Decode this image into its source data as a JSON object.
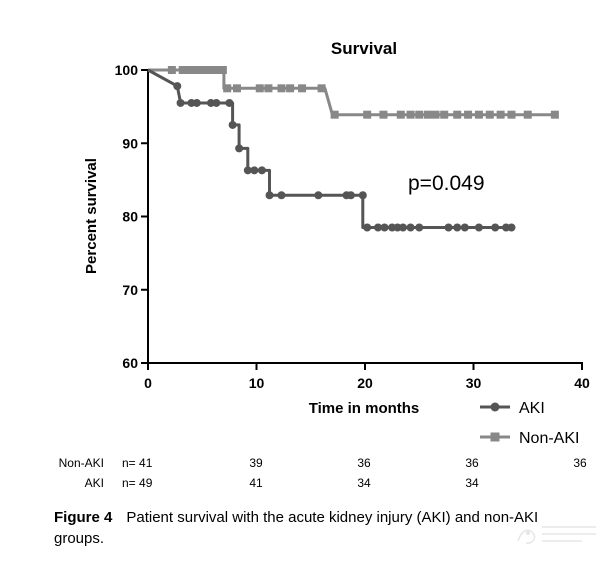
{
  "chart_data": {
    "type": "line",
    "title": "Survival",
    "xlabel": "Time in months",
    "ylabel": "Percent survival",
    "xlim": [
      0,
      40
    ],
    "ylim": [
      60,
      100
    ],
    "x_ticks": [
      0,
      10,
      20,
      30,
      40
    ],
    "y_ticks": [
      60,
      70,
      80,
      90,
      100
    ],
    "grid": false,
    "legend_position": "bottom-right",
    "annotation": "p=0.049",
    "series": [
      {
        "name": "AKI",
        "color": "#555555",
        "marker": "circle",
        "step": [
          [
            0,
            100
          ],
          [
            2.7,
            97.8
          ],
          [
            3,
            95.5
          ],
          [
            7.8,
            95.5
          ],
          [
            7.8,
            92.5
          ],
          [
            8.4,
            92.5
          ],
          [
            8.4,
            89.3
          ],
          [
            9.2,
            89.3
          ],
          [
            9.2,
            86.3
          ],
          [
            11.2,
            86.3
          ],
          [
            11.2,
            82.9
          ],
          [
            19.8,
            82.9
          ],
          [
            19.8,
            78.5
          ],
          [
            33.5,
            78.5
          ]
        ],
        "markers": [
          [
            2.7,
            97.8
          ],
          [
            3,
            95.5
          ],
          [
            4,
            95.5
          ],
          [
            4.5,
            95.5
          ],
          [
            5.8,
            95.5
          ],
          [
            6.3,
            95.5
          ],
          [
            7.5,
            95.5
          ],
          [
            7.8,
            92.5
          ],
          [
            8.4,
            89.3
          ],
          [
            9.2,
            86.3
          ],
          [
            9.8,
            86.3
          ],
          [
            10.5,
            86.3
          ],
          [
            11.2,
            82.9
          ],
          [
            12.3,
            82.9
          ],
          [
            15.7,
            82.9
          ],
          [
            18.3,
            82.9
          ],
          [
            18.7,
            82.9
          ],
          [
            19.8,
            82.9
          ],
          [
            20.2,
            78.5
          ],
          [
            21.2,
            78.5
          ],
          [
            21.8,
            78.5
          ],
          [
            22.5,
            78.5
          ],
          [
            23,
            78.5
          ],
          [
            23.5,
            78.5
          ],
          [
            24.2,
            78.5
          ],
          [
            25,
            78.5
          ],
          [
            27.7,
            78.5
          ],
          [
            28.5,
            78.5
          ],
          [
            29.2,
            78.5
          ],
          [
            30.5,
            78.5
          ],
          [
            32,
            78.5
          ],
          [
            33,
            78.5
          ],
          [
            33.5,
            78.5
          ]
        ]
      },
      {
        "name": "Non-AKI",
        "color": "#888888",
        "marker": "square",
        "step": [
          [
            0,
            100
          ],
          [
            7,
            100
          ],
          [
            7,
            97.5
          ],
          [
            16.3,
            97.5
          ],
          [
            17,
            93.9
          ],
          [
            37.5,
            93.9
          ]
        ],
        "markers": [
          [
            2.2,
            100
          ],
          [
            3.2,
            100
          ],
          [
            3.8,
            100
          ],
          [
            4.4,
            100
          ],
          [
            4.9,
            100
          ],
          [
            5.4,
            100
          ],
          [
            5.9,
            100
          ],
          [
            6.4,
            100
          ],
          [
            6.9,
            100
          ],
          [
            7.3,
            97.5
          ],
          [
            8.2,
            97.5
          ],
          [
            10.3,
            97.5
          ],
          [
            11.1,
            97.5
          ],
          [
            12.3,
            97.5
          ],
          [
            13.1,
            97.5
          ],
          [
            14.2,
            97.5
          ],
          [
            16,
            97.5
          ],
          [
            17.2,
            93.9
          ],
          [
            20.2,
            93.9
          ],
          [
            21.7,
            93.9
          ],
          [
            23.3,
            93.9
          ],
          [
            24.2,
            93.9
          ],
          [
            25,
            93.9
          ],
          [
            25.8,
            93.9
          ],
          [
            26.5,
            93.9
          ],
          [
            27.3,
            93.9
          ],
          [
            28.5,
            93.9
          ],
          [
            29.5,
            93.9
          ],
          [
            30.5,
            93.9
          ],
          [
            31.5,
            93.9
          ],
          [
            32.5,
            93.9
          ],
          [
            33.5,
            93.9
          ],
          [
            35,
            93.9
          ],
          [
            37.5,
            93.9
          ]
        ]
      }
    ],
    "risk_table": [
      {
        "label": "Non-AKI",
        "n_label": "n= 41",
        "values": [
          "39",
          "36",
          "36",
          "36"
        ]
      },
      {
        "label": "AKI",
        "n_label": "n= 49",
        "values": [
          "41",
          "34",
          "34"
        ]
      }
    ]
  },
  "caption": {
    "label": "Figure 4",
    "text": "Patient survival with the acute kidney injury (AKI) and non-AKI groups."
  }
}
